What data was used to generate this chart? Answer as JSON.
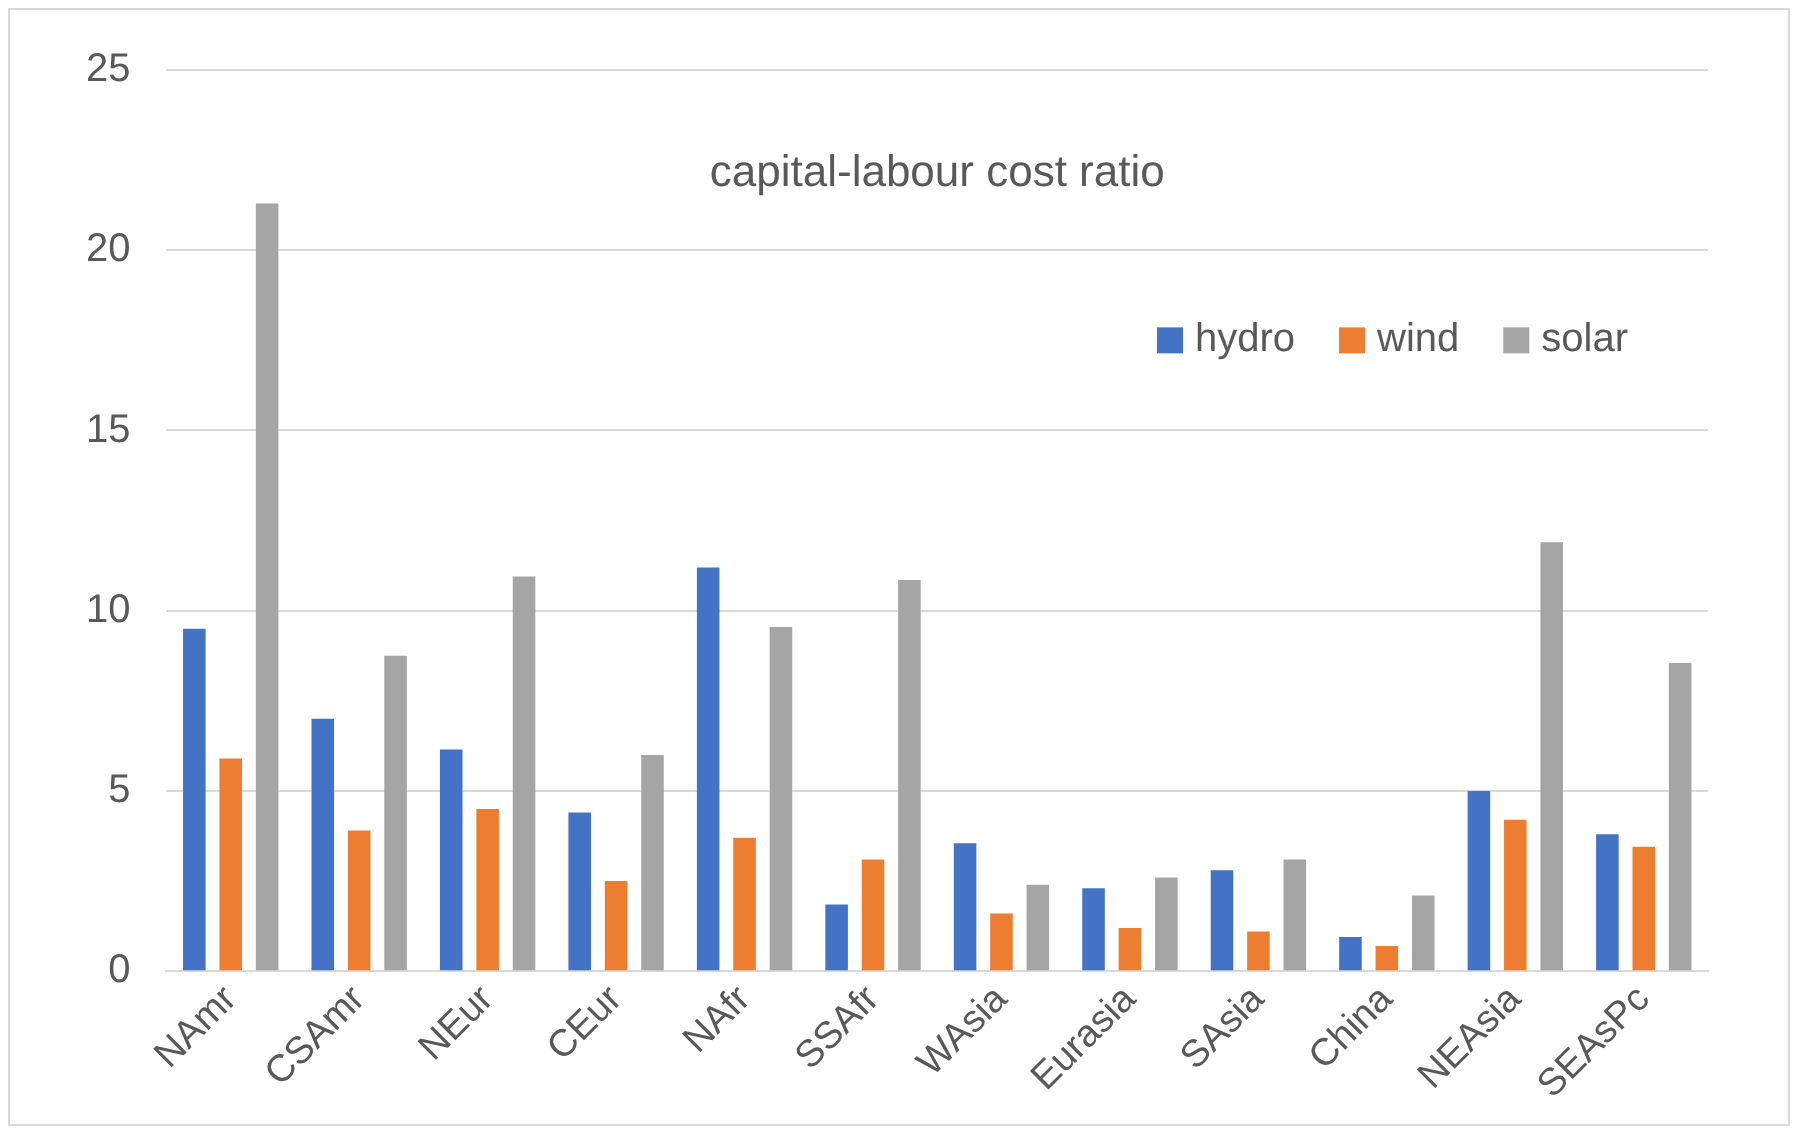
{
  "chart_data": {
    "type": "bar",
    "title": "capital-labour cost ratio",
    "categories": [
      "NAmr",
      "CSAmr",
      "NEur",
      "CEur",
      "NAfr",
      "SSAfr",
      "WAsia",
      "Eurasia",
      "SAsia",
      "China",
      "NEAsia",
      "SEAsPc"
    ],
    "series": [
      {
        "name": "hydro",
        "color": "#4472c4",
        "values": [
          9.5,
          7.0,
          6.15,
          4.4,
          11.2,
          1.85,
          3.55,
          2.3,
          2.8,
          0.95,
          5.0,
          3.8
        ]
      },
      {
        "name": "wind",
        "color": "#ed7d31",
        "values": [
          5.9,
          3.9,
          4.5,
          2.5,
          3.7,
          3.1,
          1.6,
          1.2,
          1.1,
          0.7,
          4.2,
          3.45
        ]
      },
      {
        "name": "solar",
        "color": "#a5a5a5",
        "values": [
          21.3,
          8.75,
          10.95,
          6.0,
          9.55,
          10.85,
          2.4,
          2.6,
          3.1,
          2.1,
          11.9,
          8.55
        ]
      }
    ],
    "ylim": [
      0,
      25
    ],
    "yticks": [
      0,
      5,
      10,
      15,
      20,
      25
    ],
    "grid": "y",
    "legend": "top right"
  }
}
